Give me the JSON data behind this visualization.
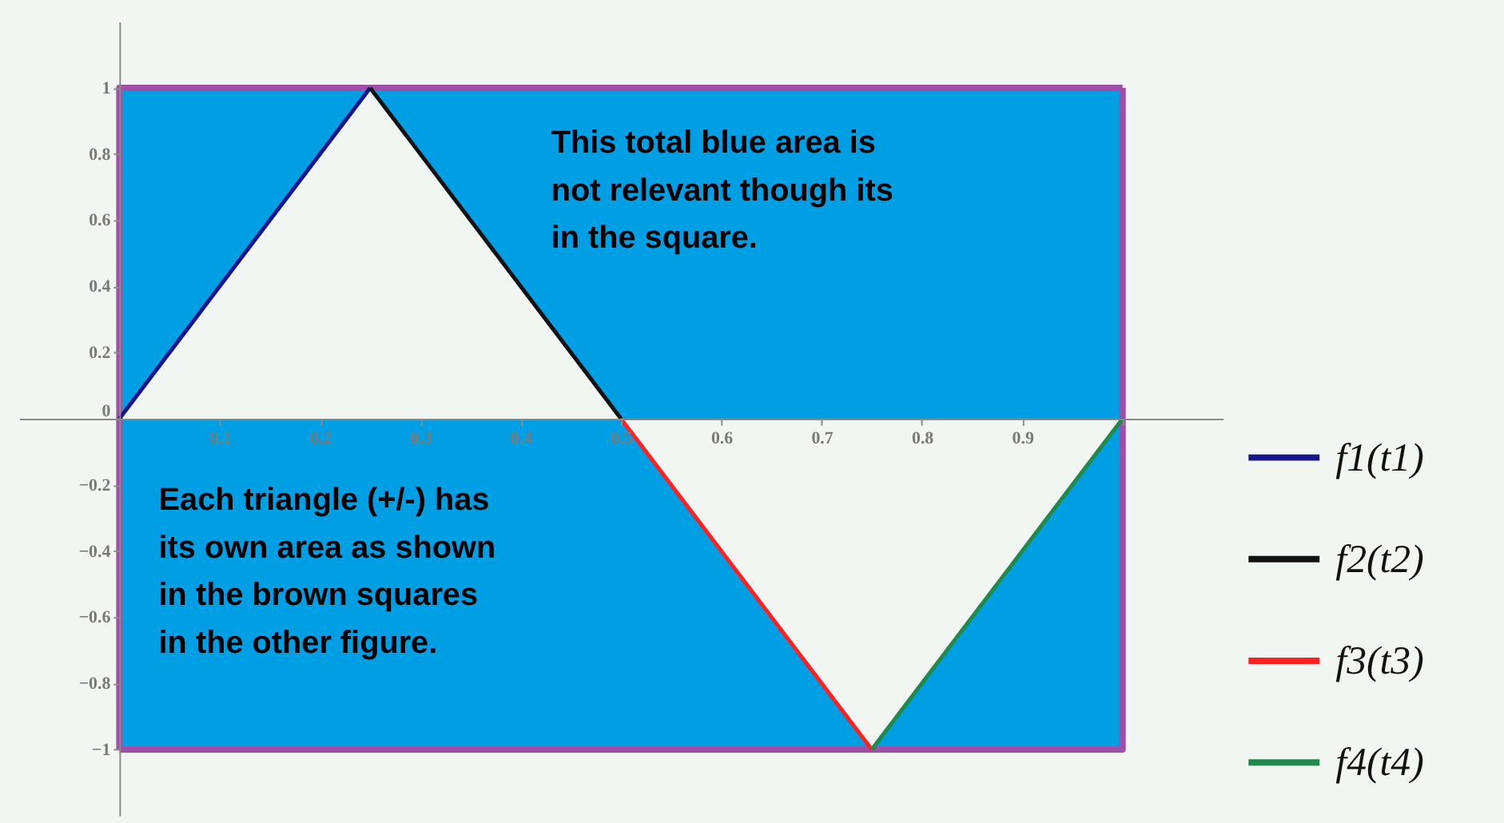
{
  "chart_data": {
    "type": "line",
    "xlim": [
      -0.1,
      1.1
    ],
    "xticks": [
      {
        "value": 0,
        "label": null
      },
      0.1,
      0.2,
      0.3,
      0.4,
      0.5,
      0.6,
      0.7,
      0.8,
      0.9,
      {
        "value": 1,
        "label": null
      }
    ],
    "ylim": [
      -1.2,
      1.2
    ],
    "yticks": [
      -1,
      -0.8,
      -0.6,
      -0.4,
      -0.2,
      0,
      0.2,
      0.4,
      0.6,
      0.8,
      1
    ],
    "legend": "right",
    "annotations": [
      "This total blue area is\nnot relevant though its\nin the square.",
      "Each triangle (+/-) has\nits own area as shown\nin the brown squares\nin the other figure."
    ],
    "series": [
      {
        "type": "area",
        "color": "#009fe3",
        "x": [
          0,
          0.25,
          0.5,
          1
        ],
        "values": [
          1,
          1,
          1,
          1
        ]
      },
      {
        "type": "area",
        "color": "#009fe3",
        "x": [
          0,
          0.5,
          0.75,
          1
        ],
        "values": [
          -1,
          -1,
          -1,
          -1
        ]
      },
      {
        "type": "line",
        "color": "#a04fa8",
        "x": [
          0,
          0,
          1
        ],
        "values": [
          -1,
          1,
          1
        ]
      },
      {
        "type": "line",
        "color": "#a04fa8",
        "x": [
          1,
          1,
          0
        ],
        "values": [
          1,
          -1,
          -1
        ]
      },
      {
        "name": "f1(t1)",
        "color": "#14148c",
        "x": [
          0,
          0.25
        ],
        "values": [
          0,
          1
        ]
      },
      {
        "name": "f2(t2)",
        "color": "#111111",
        "x": [
          0.25,
          0.5
        ],
        "values": [
          1,
          0
        ]
      },
      {
        "name": "f3(t3)",
        "color": "#ff2020",
        "x": [
          0.5,
          0.75
        ],
        "values": [
          0,
          -1
        ]
      },
      {
        "name": "f4(t4)",
        "color": "#1f8a4c",
        "x": [
          0.75,
          1
        ],
        "values": [
          -1,
          0
        ]
      }
    ]
  }
}
